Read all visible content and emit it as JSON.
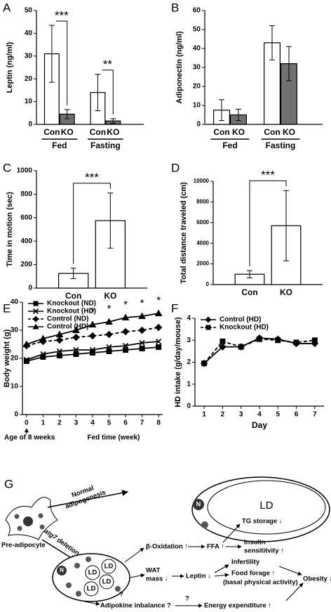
{
  "chart_data": [
    {
      "type": "bar",
      "panel": "A",
      "ylabel": "Leptin (ng/ml)",
      "ylim": [
        0,
        50
      ],
      "yticks": [
        0,
        10,
        20,
        30,
        40,
        50
      ],
      "categories": [
        "Con",
        "KO",
        "Con",
        "KO"
      ],
      "groups": [
        "Fed",
        "Fasting"
      ],
      "values": [
        31,
        4.5,
        14,
        1.5
      ],
      "errors": [
        12.5,
        2,
        8,
        1
      ],
      "colors": [
        "#ffffff",
        "#707070",
        "#ffffff",
        "#707070"
      ],
      "annotations": [
        "***",
        "**"
      ]
    },
    {
      "type": "bar",
      "panel": "B",
      "ylabel": "Adiponectin (ng/ml)",
      "ylim": [
        0,
        60
      ],
      "yticks": [
        0,
        10,
        20,
        30,
        40,
        50,
        60
      ],
      "categories": [
        "Con",
        "KO",
        "Con",
        "KO"
      ],
      "groups": [
        "Fed",
        "Fasting"
      ],
      "values": [
        7.5,
        5,
        43,
        32
      ],
      "errors": [
        5.5,
        3,
        9,
        9
      ],
      "colors": [
        "#ffffff",
        "#707070",
        "#ffffff",
        "#707070"
      ]
    },
    {
      "type": "bar",
      "panel": "C",
      "ylabel": "Time in motion (sec)",
      "ylim": [
        0,
        1000
      ],
      "yticks": [
        0,
        200,
        400,
        600,
        800,
        1000
      ],
      "categories": [
        "Con",
        "KO"
      ],
      "values": [
        125,
        575
      ],
      "errors": [
        45,
        235
      ],
      "colors": [
        "#ffffff",
        "#ffffff"
      ],
      "annotations": [
        "***"
      ]
    },
    {
      "type": "bar",
      "panel": "D",
      "ylabel": "Total distance traveled (cm)",
      "ylim": [
        0,
        10000
      ],
      "yticks": [
        0,
        2000,
        4000,
        6000,
        8000,
        10000
      ],
      "categories": [
        "Con",
        "KO"
      ],
      "values": [
        1000,
        5700
      ],
      "errors": [
        350,
        3400
      ],
      "colors": [
        "#ffffff",
        "#ffffff"
      ],
      "annotations": [
        "***"
      ]
    },
    {
      "type": "line",
      "panel": "E",
      "ylabel": "Body weight (g)",
      "xlabel": "Fed time (week)",
      "x_annotation": "Age of 8 weeks",
      "x": [
        0,
        1,
        2,
        3,
        4,
        5,
        6,
        7,
        8
      ],
      "xlim": [
        -0.25,
        8.25
      ],
      "xticks": [
        0,
        1,
        2,
        3,
        4,
        5,
        6,
        7,
        8
      ],
      "ylim": [
        0,
        40
      ],
      "yticks": [
        0,
        10,
        20,
        30,
        40
      ],
      "series": [
        {
          "name": "Knockout (ND)",
          "color": "#000000",
          "marker": "square",
          "dash": false,
          "values": [
            19,
            20.5,
            21,
            21.5,
            22,
            22.5,
            23,
            23.5,
            24
          ]
        },
        {
          "name": "Knockout (HD)",
          "color": "#000000",
          "marker": "x",
          "dash": false,
          "values": [
            19.5,
            21.5,
            22.5,
            23,
            23,
            24,
            24.5,
            25.5,
            26
          ]
        },
        {
          "name": "Control (ND)",
          "color": "#000000",
          "marker": "diamond",
          "dash": true,
          "values": [
            24.5,
            26,
            26.5,
            27.5,
            28,
            28.5,
            29.5,
            30,
            31
          ]
        },
        {
          "name": "Control (HD)",
          "color": "#000000",
          "marker": "triangle",
          "dash": false,
          "values": [
            25,
            27,
            28.5,
            30,
            32,
            33,
            34.5,
            35,
            36
          ]
        }
      ],
      "annotations": [
        "*",
        "*",
        "*",
        "*",
        "*"
      ],
      "annotation_x": [
        4,
        5,
        6,
        7,
        8
      ]
    },
    {
      "type": "line",
      "panel": "F",
      "ylabel": "HD intake (g/day/mouse)",
      "xlabel": "Day",
      "x": [
        1,
        2,
        3,
        4,
        5,
        6,
        7
      ],
      "xlim": [
        0.5,
        7.5
      ],
      "xticks": [
        1,
        2,
        3,
        4,
        5,
        6,
        7
      ],
      "ylim": [
        0,
        4
      ],
      "yticks": [
        0,
        1,
        2,
        3,
        4
      ],
      "series": [
        {
          "name": "Control (HD)",
          "color": "#000000",
          "marker": "diamond",
          "dash": false,
          "values": [
            1.95,
            2.7,
            2.7,
            3.1,
            3.05,
            2.85,
            2.85
          ]
        },
        {
          "name": "Knockout (HD)",
          "color": "#000000",
          "marker": "square",
          "dash": true,
          "values": [
            1.95,
            2.95,
            2.7,
            3.05,
            3.0,
            2.9,
            3.0
          ]
        }
      ]
    }
  ],
  "diagram": {
    "label": "G",
    "normal": [
      "Normal",
      "adipogenesis"
    ],
    "ld": "LD",
    "nucleus": "N",
    "pre_adipocyte": "Pre-adipocyte",
    "deletion": "atg7 deletion",
    "small_ld": [
      "LD",
      "LD",
      "LD",
      "LD"
    ],
    "beta_oxidation": "β-Oxidation ↑",
    "ffa": "FFA ↑",
    "tg_storage": "TG storage ↓",
    "insulin": [
      "Insulin",
      "sensititvity ↑"
    ],
    "wat": [
      "WAT",
      "mass ↓"
    ],
    "leptin": "Leptin ↓",
    "infertility": "Infertility",
    "food": "Food forage ↑",
    "basal": "(basal physical activity)",
    "obesity": "Obesity ↓",
    "adipokine": "Adipokine inbalance ?",
    "question": "?",
    "energy": "Energy expenditure ↑"
  }
}
